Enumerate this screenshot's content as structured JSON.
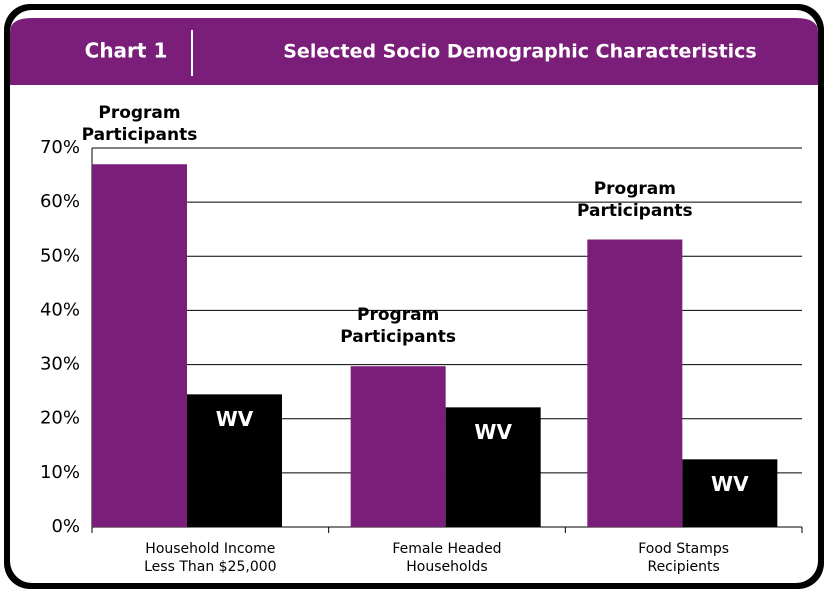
{
  "chart_data": {
    "type": "bar",
    "header": "Chart 1",
    "title": "Selected Socio Demographic Characteristics",
    "categories": [
      [
        "Household Income",
        "Less Than $25,000"
      ],
      [
        "Female Headed",
        "Households"
      ],
      [
        "Food Stamps",
        "Recipients"
      ]
    ],
    "series": [
      {
        "name": "Program Participants",
        "color": "#7b1e7a",
        "values": [
          67,
          29.7,
          53.1
        ]
      },
      {
        "name": "WV",
        "color": "#000000",
        "values": [
          24.5,
          22.1,
          12.5
        ]
      }
    ],
    "ylim": [
      0,
      70
    ],
    "yticks": [
      {
        "value": 0,
        "label": "0%"
      },
      {
        "value": 10,
        "label": "10%"
      },
      {
        "value": 20,
        "label": "20%"
      },
      {
        "value": 30,
        "label": "30%"
      },
      {
        "value": 40,
        "label": "40%"
      },
      {
        "value": 50,
        "label": "50%"
      },
      {
        "value": 60,
        "label": "60%"
      },
      {
        "value": 70,
        "label": "70%"
      }
    ],
    "grid": true
  }
}
